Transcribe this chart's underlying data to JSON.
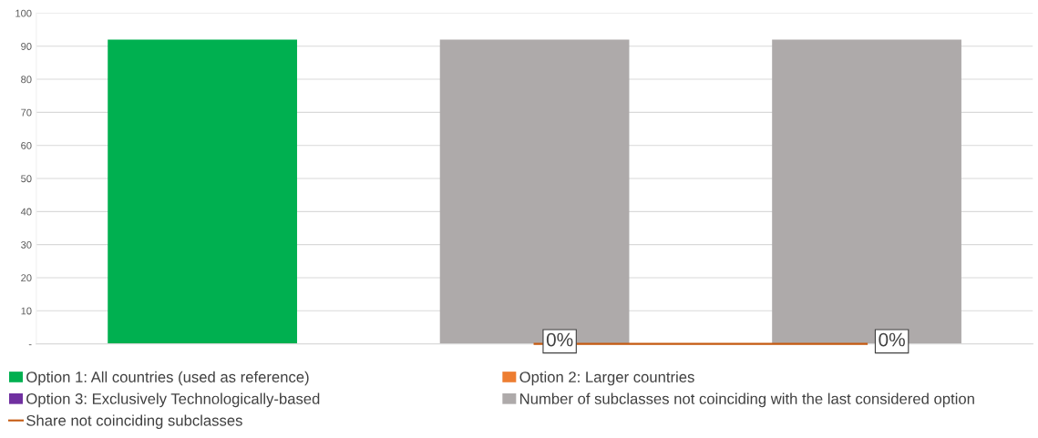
{
  "chart_data": {
    "type": "bar",
    "categories": [
      null,
      null,
      null
    ],
    "series": [
      {
        "name": "Option 1: All countries (used as reference)",
        "color": "#00b050",
        "values": [
          92,
          null,
          null
        ]
      },
      {
        "name": "Option 2: Larger countries",
        "color": "#ed7d31",
        "values": [
          null,
          null,
          null
        ]
      },
      {
        "name": "Option 3: Exclusively Technologically-based",
        "color": "#7030a0",
        "values": [
          null,
          null,
          null
        ]
      },
      {
        "name": "Number of subclasses not coinciding with the last considered option",
        "color": "#aeaaaa",
        "values": [
          null,
          92,
          92
        ]
      },
      {
        "name": "Share not coinciding subclasses",
        "type": "line",
        "marker": "none",
        "color": "#c55a11",
        "values": [
          null,
          0,
          0
        ],
        "value_labels": [
          null,
          "0%",
          "0%"
        ]
      }
    ],
    "ylim": [
      0,
      100
    ],
    "yticks": [
      {
        "value": 0,
        "label": "-"
      },
      10,
      20,
      30,
      40,
      50,
      60,
      70,
      80,
      90,
      100
    ],
    "grid": "y",
    "legend": "bottom"
  }
}
